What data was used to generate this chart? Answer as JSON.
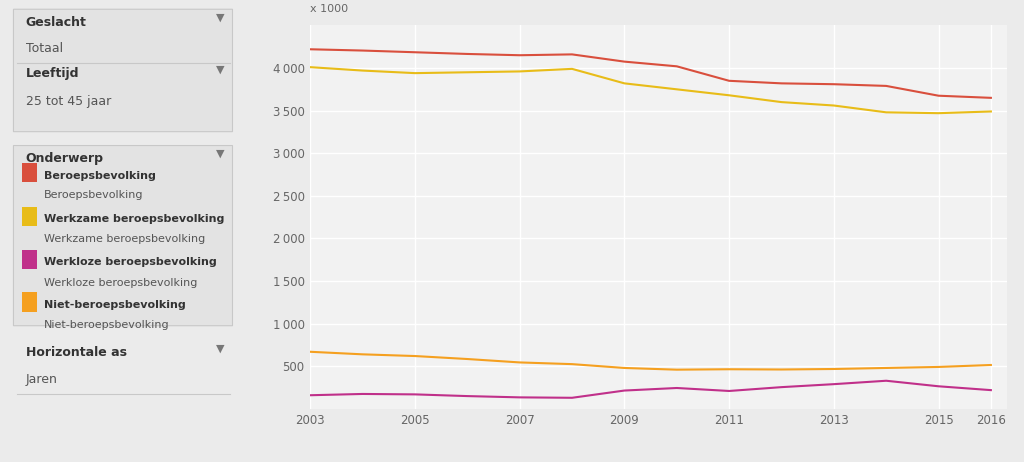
{
  "years": [
    2003,
    2004,
    2005,
    2006,
    2007,
    2008,
    2009,
    2010,
    2011,
    2012,
    2013,
    2014,
    2015,
    2016
  ],
  "beroepsbevolking": [
    4220,
    4205,
    4185,
    4165,
    4150,
    4160,
    4075,
    4020,
    3850,
    3820,
    3810,
    3790,
    3675,
    3650
  ],
  "werkzame": [
    4010,
    3970,
    3940,
    3950,
    3960,
    3990,
    3820,
    3750,
    3680,
    3600,
    3560,
    3480,
    3470,
    3490
  ],
  "werkloze": [
    160,
    175,
    170,
    150,
    135,
    130,
    215,
    245,
    210,
    255,
    290,
    330,
    265,
    220
  ],
  "niet_beroeps": [
    670,
    640,
    620,
    585,
    545,
    525,
    480,
    460,
    465,
    462,
    468,
    480,
    492,
    515
  ],
  "color_beroeps": "#d94f3d",
  "color_werkzame": "#e8bc18",
  "color_werkloze": "#c0308a",
  "color_niet": "#f5a020",
  "bg_color": "#ebebeb",
  "plot_bg": "#f2f2f2",
  "grid_color": "#ffffff",
  "panel_bg": "#e3e3e3",
  "panel_border": "#c8c8c8",
  "yticks": [
    500,
    1000,
    1500,
    2000,
    2500,
    3000,
    3500,
    4000
  ],
  "xticks": [
    2003,
    2005,
    2007,
    2009,
    2011,
    2013,
    2015,
    2016
  ],
  "ylabel_top": "x 1000"
}
